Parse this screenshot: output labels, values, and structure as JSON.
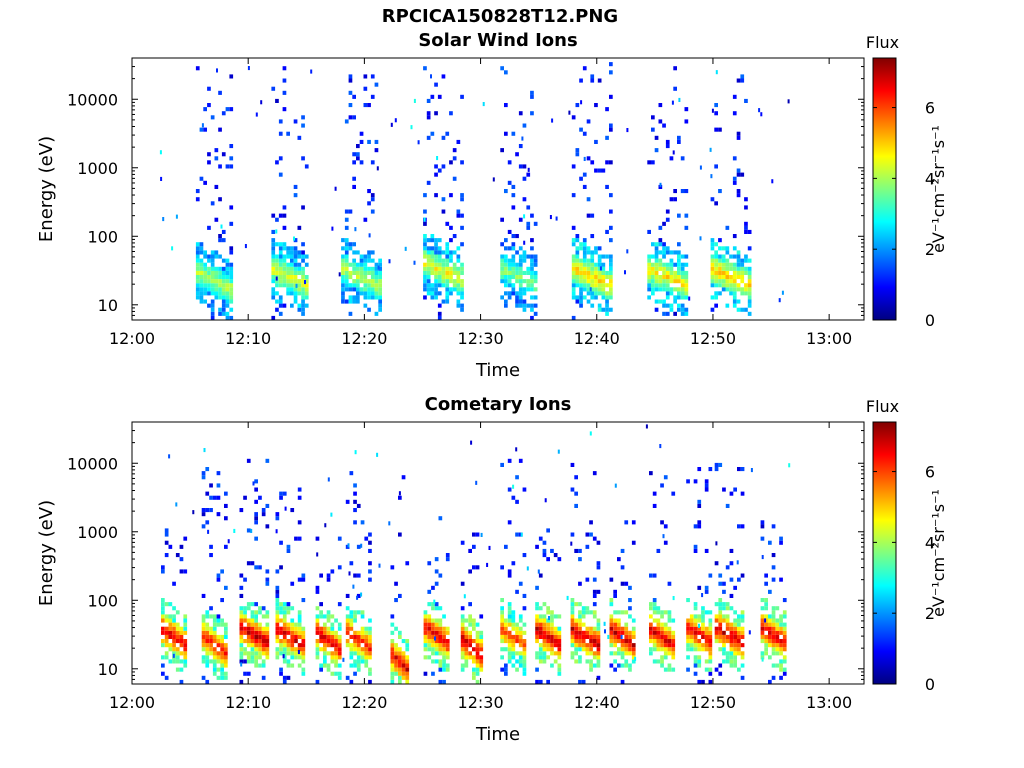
{
  "figure_title": "RPCICA150828T12.PNG",
  "chart_data": [
    {
      "type": "heatmap",
      "title": "Solar Wind Ions",
      "xlabel": "Time",
      "ylabel": "Energy (eV)",
      "x_ticks": [
        "12:00",
        "12:10",
        "12:20",
        "12:30",
        "12:40",
        "12:50",
        "13:00"
      ],
      "x_range_minutes": [
        0,
        63
      ],
      "y_scale": "log",
      "y_ticks": [
        "10",
        "100",
        "1000",
        "10000"
      ],
      "y_range": [
        6,
        40000
      ],
      "colorbar": {
        "label": "Flux",
        "unit": "eV⁻¹cm⁻²sr⁻¹s⁻¹",
        "ticks": [
          "0",
          "2",
          "4",
          "6"
        ],
        "range": [
          0,
          7.4
        ],
        "colormap": "jet"
      },
      "bursts": [
        {
          "center_min": 7.0,
          "width_min": 3.0,
          "peak_energy_eV": 22,
          "peak_flux": 4.2,
          "max_energy_eV": 30000
        },
        {
          "center_min": 13.5,
          "width_min": 3.0,
          "peak_energy_eV": 25,
          "peak_flux": 4.5,
          "max_energy_eV": 30000
        },
        {
          "center_min": 19.6,
          "width_min": 3.2,
          "peak_energy_eV": 25,
          "peak_flux": 4.2,
          "max_energy_eV": 35000
        },
        {
          "center_min": 26.8,
          "width_min": 3.5,
          "peak_energy_eV": 30,
          "peak_flux": 4.6,
          "max_energy_eV": 35000
        },
        {
          "center_min": 33.2,
          "width_min": 3.0,
          "peak_energy_eV": 25,
          "peak_flux": 3.8,
          "max_energy_eV": 30000
        },
        {
          "center_min": 39.5,
          "width_min": 3.3,
          "peak_energy_eV": 25,
          "peak_flux": 5.0,
          "max_energy_eV": 35000
        },
        {
          "center_min": 46.0,
          "width_min": 3.3,
          "peak_energy_eV": 25,
          "peak_flux": 4.8,
          "max_energy_eV": 30000
        },
        {
          "center_min": 51.5,
          "width_min": 3.4,
          "peak_energy_eV": 25,
          "peak_flux": 5.0,
          "max_energy_eV": 30000
        }
      ]
    },
    {
      "type": "heatmap",
      "title": "Cometary Ions",
      "xlabel": "Time",
      "ylabel": "Energy (eV)",
      "x_ticks": [
        "12:00",
        "12:10",
        "12:20",
        "12:30",
        "12:40",
        "12:50",
        "13:00"
      ],
      "x_range_minutes": [
        0,
        63
      ],
      "y_scale": "log",
      "y_ticks": [
        "10",
        "100",
        "1000",
        "10000"
      ],
      "y_range": [
        6,
        40000
      ],
      "colorbar": {
        "label": "Flux",
        "unit": "eV⁻¹cm⁻²sr⁻¹s⁻¹",
        "ticks": [
          "0",
          "2",
          "4",
          "6"
        ],
        "range": [
          0,
          7.4
        ],
        "colormap": "jet"
      },
      "bursts": [
        {
          "center_min": 3.6,
          "width_min": 2.2,
          "peak_energy_eV": 28,
          "peak_flux": 6.8,
          "max_energy_eV": 1500
        },
        {
          "center_min": 7.0,
          "width_min": 2.0,
          "peak_energy_eV": 22,
          "peak_flux": 6.5,
          "max_energy_eV": 9000
        },
        {
          "center_min": 10.5,
          "width_min": 2.5,
          "peak_energy_eV": 30,
          "peak_flux": 7.0,
          "max_energy_eV": 11000
        },
        {
          "center_min": 13.6,
          "width_min": 2.5,
          "peak_energy_eV": 28,
          "peak_flux": 6.8,
          "max_energy_eV": 9000
        },
        {
          "center_min": 16.8,
          "width_min": 2.0,
          "peak_energy_eV": 25,
          "peak_flux": 6.8,
          "max_energy_eV": 1000
        },
        {
          "center_min": 19.5,
          "width_min": 2.2,
          "peak_energy_eV": 25,
          "peak_flux": 6.5,
          "max_energy_eV": 9000
        },
        {
          "center_min": 23.0,
          "width_min": 1.5,
          "peak_energy_eV": 12,
          "peak_flux": 6.8,
          "max_energy_eV": 9000
        },
        {
          "center_min": 26.2,
          "width_min": 2.2,
          "peak_energy_eV": 30,
          "peak_flux": 6.8,
          "max_energy_eV": 2000
        },
        {
          "center_min": 29.2,
          "width_min": 1.8,
          "peak_energy_eV": 20,
          "peak_flux": 7.0,
          "max_energy_eV": 1500
        },
        {
          "center_min": 32.8,
          "width_min": 2.2,
          "peak_energy_eV": 28,
          "peak_flux": 6.2,
          "max_energy_eV": 11000
        },
        {
          "center_min": 35.8,
          "width_min": 2.2,
          "peak_energy_eV": 28,
          "peak_flux": 7.0,
          "max_energy_eV": 2000
        },
        {
          "center_min": 39.0,
          "width_min": 2.5,
          "peak_energy_eV": 28,
          "peak_flux": 7.0,
          "max_energy_eV": 10000
        },
        {
          "center_min": 42.2,
          "width_min": 2.2,
          "peak_energy_eV": 28,
          "peak_flux": 7.0,
          "max_energy_eV": 1500
        },
        {
          "center_min": 45.6,
          "width_min": 2.2,
          "peak_energy_eV": 28,
          "peak_flux": 6.8,
          "max_energy_eV": 10000
        },
        {
          "center_min": 48.8,
          "width_min": 2.2,
          "peak_energy_eV": 30,
          "peak_flux": 6.8,
          "max_energy_eV": 9000
        },
        {
          "center_min": 51.4,
          "width_min": 2.5,
          "peak_energy_eV": 30,
          "peak_flux": 7.0,
          "max_energy_eV": 10000
        },
        {
          "center_min": 55.2,
          "width_min": 2.2,
          "peak_energy_eV": 30,
          "peak_flux": 6.8,
          "max_energy_eV": 1500
        }
      ]
    }
  ]
}
